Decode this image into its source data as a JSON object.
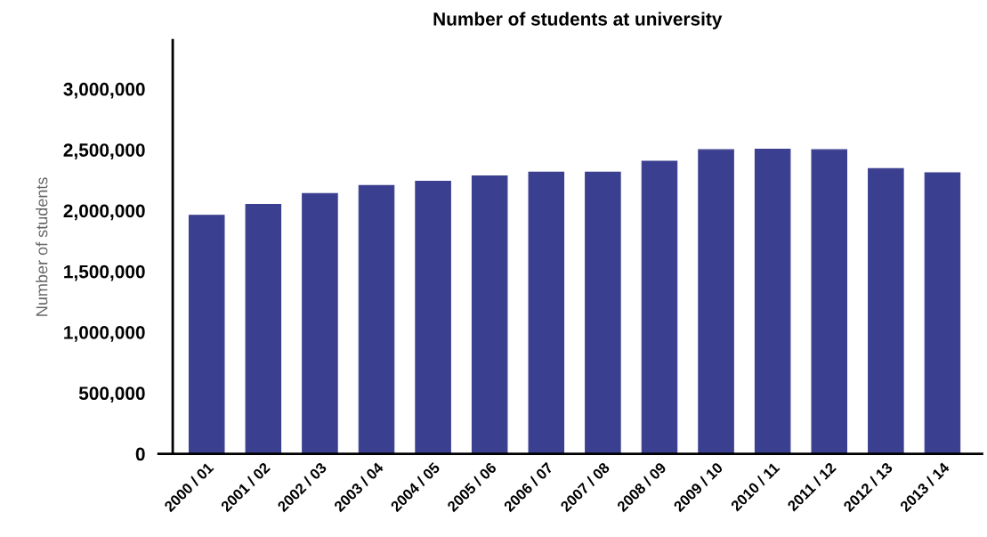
{
  "chart_data": {
    "type": "bar",
    "title": "Number of students at university",
    "ylabel": "Number of students",
    "categories": [
      "2000 / 01",
      "2001 / 02",
      "2002 / 03",
      "2003 / 04",
      "2004 / 05",
      "2005 / 06",
      "2006 / 07",
      "2007 / 08",
      "2008 / 09",
      "2009 / 10",
      "2010 / 11",
      "2011 / 12",
      "2012 / 13",
      "2013 / 14"
    ],
    "values": [
      1960000,
      2050000,
      2140000,
      2205000,
      2240000,
      2285000,
      2315000,
      2315000,
      2405000,
      2500000,
      2505000,
      2500000,
      2345000,
      2310000
    ],
    "color": "#3b3f8f",
    "ylim": [
      0,
      3400000
    ],
    "yticks": [
      {
        "value": 0,
        "label": "0"
      },
      {
        "value": 500000,
        "label": "500,000"
      },
      {
        "value": 1000000,
        "label": "1,000,000"
      },
      {
        "value": 1500000,
        "label": "1,500,000"
      },
      {
        "value": 2000000,
        "label": "2,000,000"
      },
      {
        "value": 2500000,
        "label": "2,500,000"
      },
      {
        "value": 3000000,
        "label": "3,000,000"
      }
    ],
    "grid": false,
    "legend": false
  }
}
